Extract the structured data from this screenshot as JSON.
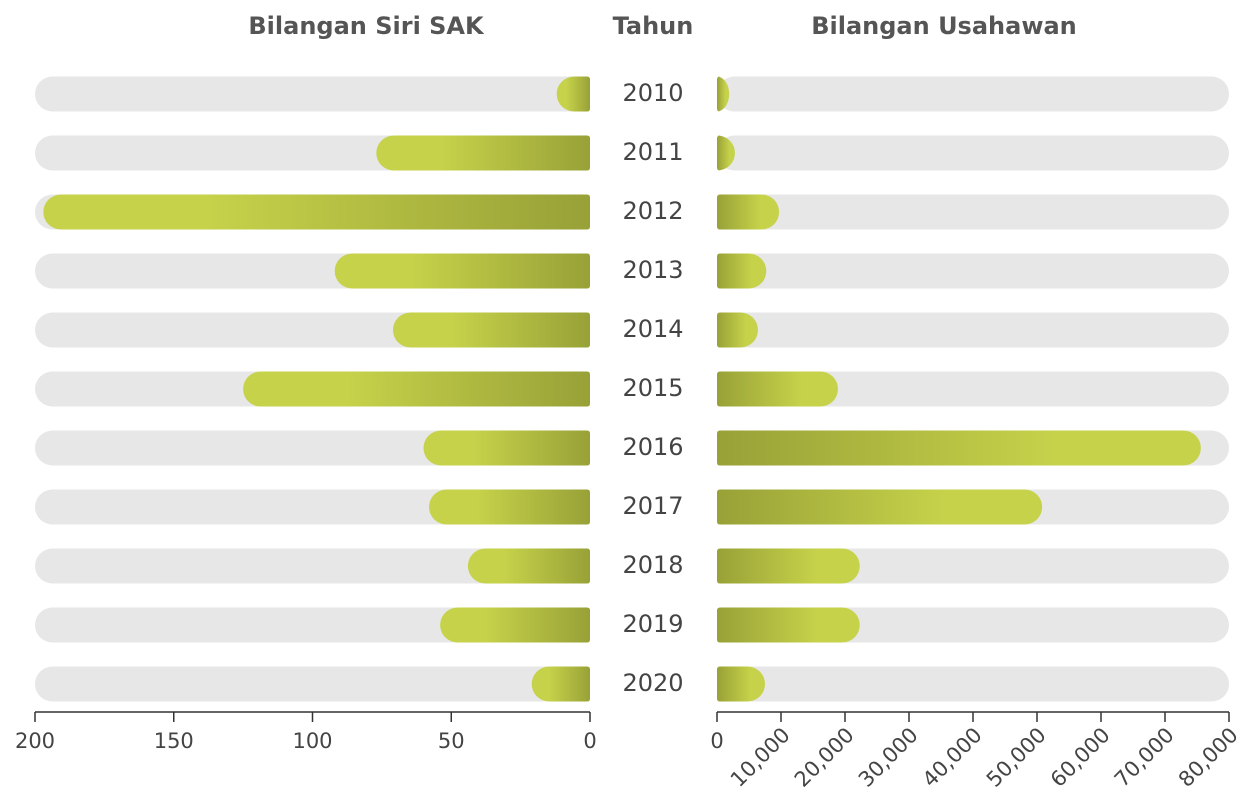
{
  "chart_data": [
    {
      "type": "bar",
      "orientation": "horizontal",
      "x_reversed": true,
      "title": "Bilangan Siri SAK",
      "ylabel": "Tahun",
      "categories": [
        "2010",
        "2011",
        "2012",
        "2013",
        "2014",
        "2015",
        "2016",
        "2017",
        "2018",
        "2019",
        "2020"
      ],
      "values": [
        12,
        77,
        197,
        92,
        71,
        125,
        60,
        58,
        44,
        54,
        21
      ],
      "xlim": [
        0,
        200
      ],
      "xticks": [
        0,
        50,
        100,
        150,
        200
      ],
      "color": "#c6d24a",
      "gradient_end": "#98a137",
      "track_color": "#e6e7e6"
    },
    {
      "type": "bar",
      "orientation": "horizontal",
      "x_reversed": false,
      "title": "Bilangan Usahawan",
      "values": [
        1900,
        2800,
        9700,
        7700,
        6400,
        18900,
        75600,
        50800,
        22300,
        22300,
        7500
      ],
      "xlim": [
        0,
        80000
      ],
      "xticks": [
        0,
        {
          "value": 10000,
          "label": "10,000"
        },
        {
          "value": 20000,
          "label": "20,000"
        },
        {
          "value": 30000,
          "label": "30,000"
        },
        {
          "value": 40000,
          "label": "40,000"
        },
        {
          "value": 50000,
          "label": "50,000"
        },
        {
          "value": 60000,
          "label": "60,000"
        },
        {
          "value": 70000,
          "label": "70,000"
        },
        {
          "value": 80000,
          "label": "80,000"
        }
      ],
      "color": "#c6d24a",
      "gradient_end": "#98a137",
      "track_color": "#e6e7e6"
    }
  ]
}
